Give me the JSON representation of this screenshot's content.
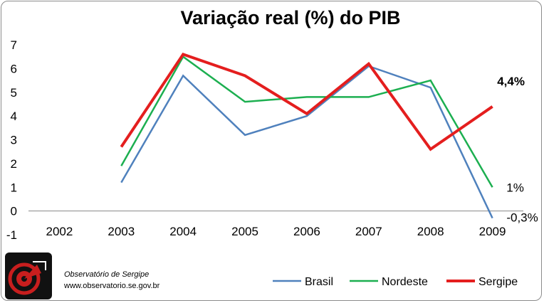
{
  "chart_data": {
    "type": "line",
    "title": "Variação real (%) do PIB",
    "xlabel": "",
    "ylabel": "",
    "categories": [
      "2002",
      "2003",
      "2004",
      "2005",
      "2006",
      "2007",
      "2008",
      "2009"
    ],
    "ylim": [
      -1,
      7
    ],
    "yticks": [
      "-1",
      "0",
      "1",
      "2",
      "3",
      "4",
      "5",
      "6",
      "7"
    ],
    "grid": false,
    "legend_position": "bottom-right",
    "series": [
      {
        "name": "Brasil",
        "color": "#4F81BD",
        "values": [
          null,
          1.2,
          5.7,
          3.2,
          4.0,
          6.1,
          5.2,
          -0.3
        ]
      },
      {
        "name": "Nordeste",
        "color": "#1CAF50",
        "values": [
          null,
          1.9,
          6.5,
          4.6,
          4.8,
          4.8,
          5.5,
          1.0
        ]
      },
      {
        "name": "Sergipe",
        "color": "#E41E1E",
        "values": [
          null,
          2.7,
          6.6,
          5.7,
          4.1,
          6.2,
          2.6,
          4.4
        ]
      }
    ],
    "annotations": [
      {
        "text": "4,4%",
        "series": "Sergipe",
        "bold": true
      },
      {
        "text": "1%",
        "series": "Nordeste",
        "bold": false
      },
      {
        "text": "-0,3%",
        "series": "Brasil",
        "bold": false
      }
    ]
  },
  "logo": {
    "name": "Observatório de Sergipe",
    "url": "www.observatorio.se.gov.br"
  }
}
